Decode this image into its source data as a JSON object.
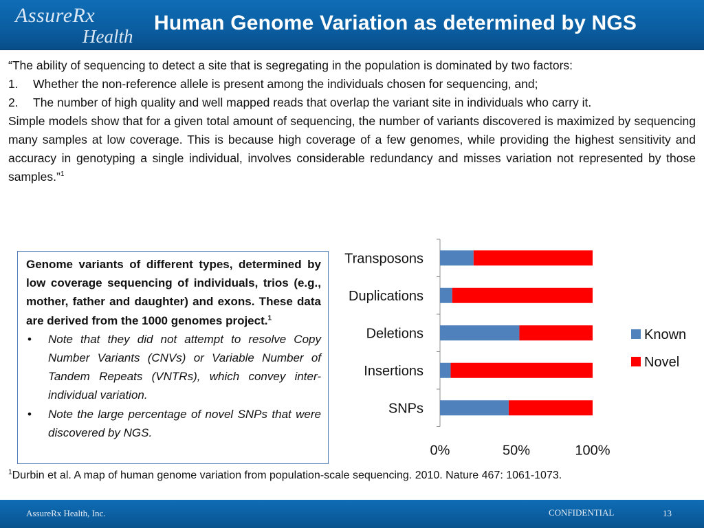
{
  "header": {
    "logo_line1": "AssureRx",
    "logo_line2": "Health",
    "title": "Human Genome Variation as determined by NGS"
  },
  "quote": {
    "intro": "“The ability of sequencing to detect a site that is segregating in the population is dominated by two factors:",
    "items": [
      {
        "num": "1.",
        "text": "Whether the non-reference allele is present among the individuals chosen for sequencing, and;"
      },
      {
        "num": "2.",
        "text": "The number of high quality and well mapped reads that overlap the variant site in individuals who carry it."
      }
    ],
    "conclusion": "Simple models show that for a given total amount of sequencing, the number of variants discovered is maximized by sequencing many samples at low coverage. This is because high coverage of a few genomes, while providing the highest sensitivity and accuracy in genotyping a single individual, involves considerable redundancy and misses variation not represented by those samples.”",
    "ref": "1"
  },
  "info_box": {
    "lead": "Genome variants of different types, determined by low coverage sequencing of individuals, trios (e.g., mother, father and daughter) and exons. These data are derived from the 1000 genomes project.",
    "lead_ref": "1",
    "bullets": [
      "Note that they did not attempt to resolve Copy Number Variants (CNVs) or Variable Number of Tandem Repeats (VNTRs), which convey inter-individual variation.",
      "Note the large percentage of novel SNPs that were discovered by NGS."
    ],
    "bullet_symbol": "•"
  },
  "chart_data": {
    "type": "bar",
    "orientation": "horizontal",
    "stacked": true,
    "categories": [
      "Transposons",
      "Duplications",
      "Deletions",
      "Insertions",
      "SNPs"
    ],
    "series": [
      {
        "name": "Known",
        "color": "#4f81bd",
        "values": [
          22,
          8,
          52,
          7,
          45
        ]
      },
      {
        "name": "Novel",
        "color": "#ff0000",
        "values": [
          78,
          92,
          48,
          93,
          55
        ]
      }
    ],
    "xlim": [
      0,
      100
    ],
    "xticks": [
      "0%",
      "50%",
      "100%"
    ],
    "legend_position": "right",
    "grid": false
  },
  "footnote": {
    "ref": "1",
    "text": "Durbin et al. A map of human genome variation from population-scale sequencing. 2010. Nature 467: 1061-1073."
  },
  "footer": {
    "company": "AssureRx Health, Inc.",
    "confidential": "CONFIDENTIAL",
    "page_number": "13"
  }
}
